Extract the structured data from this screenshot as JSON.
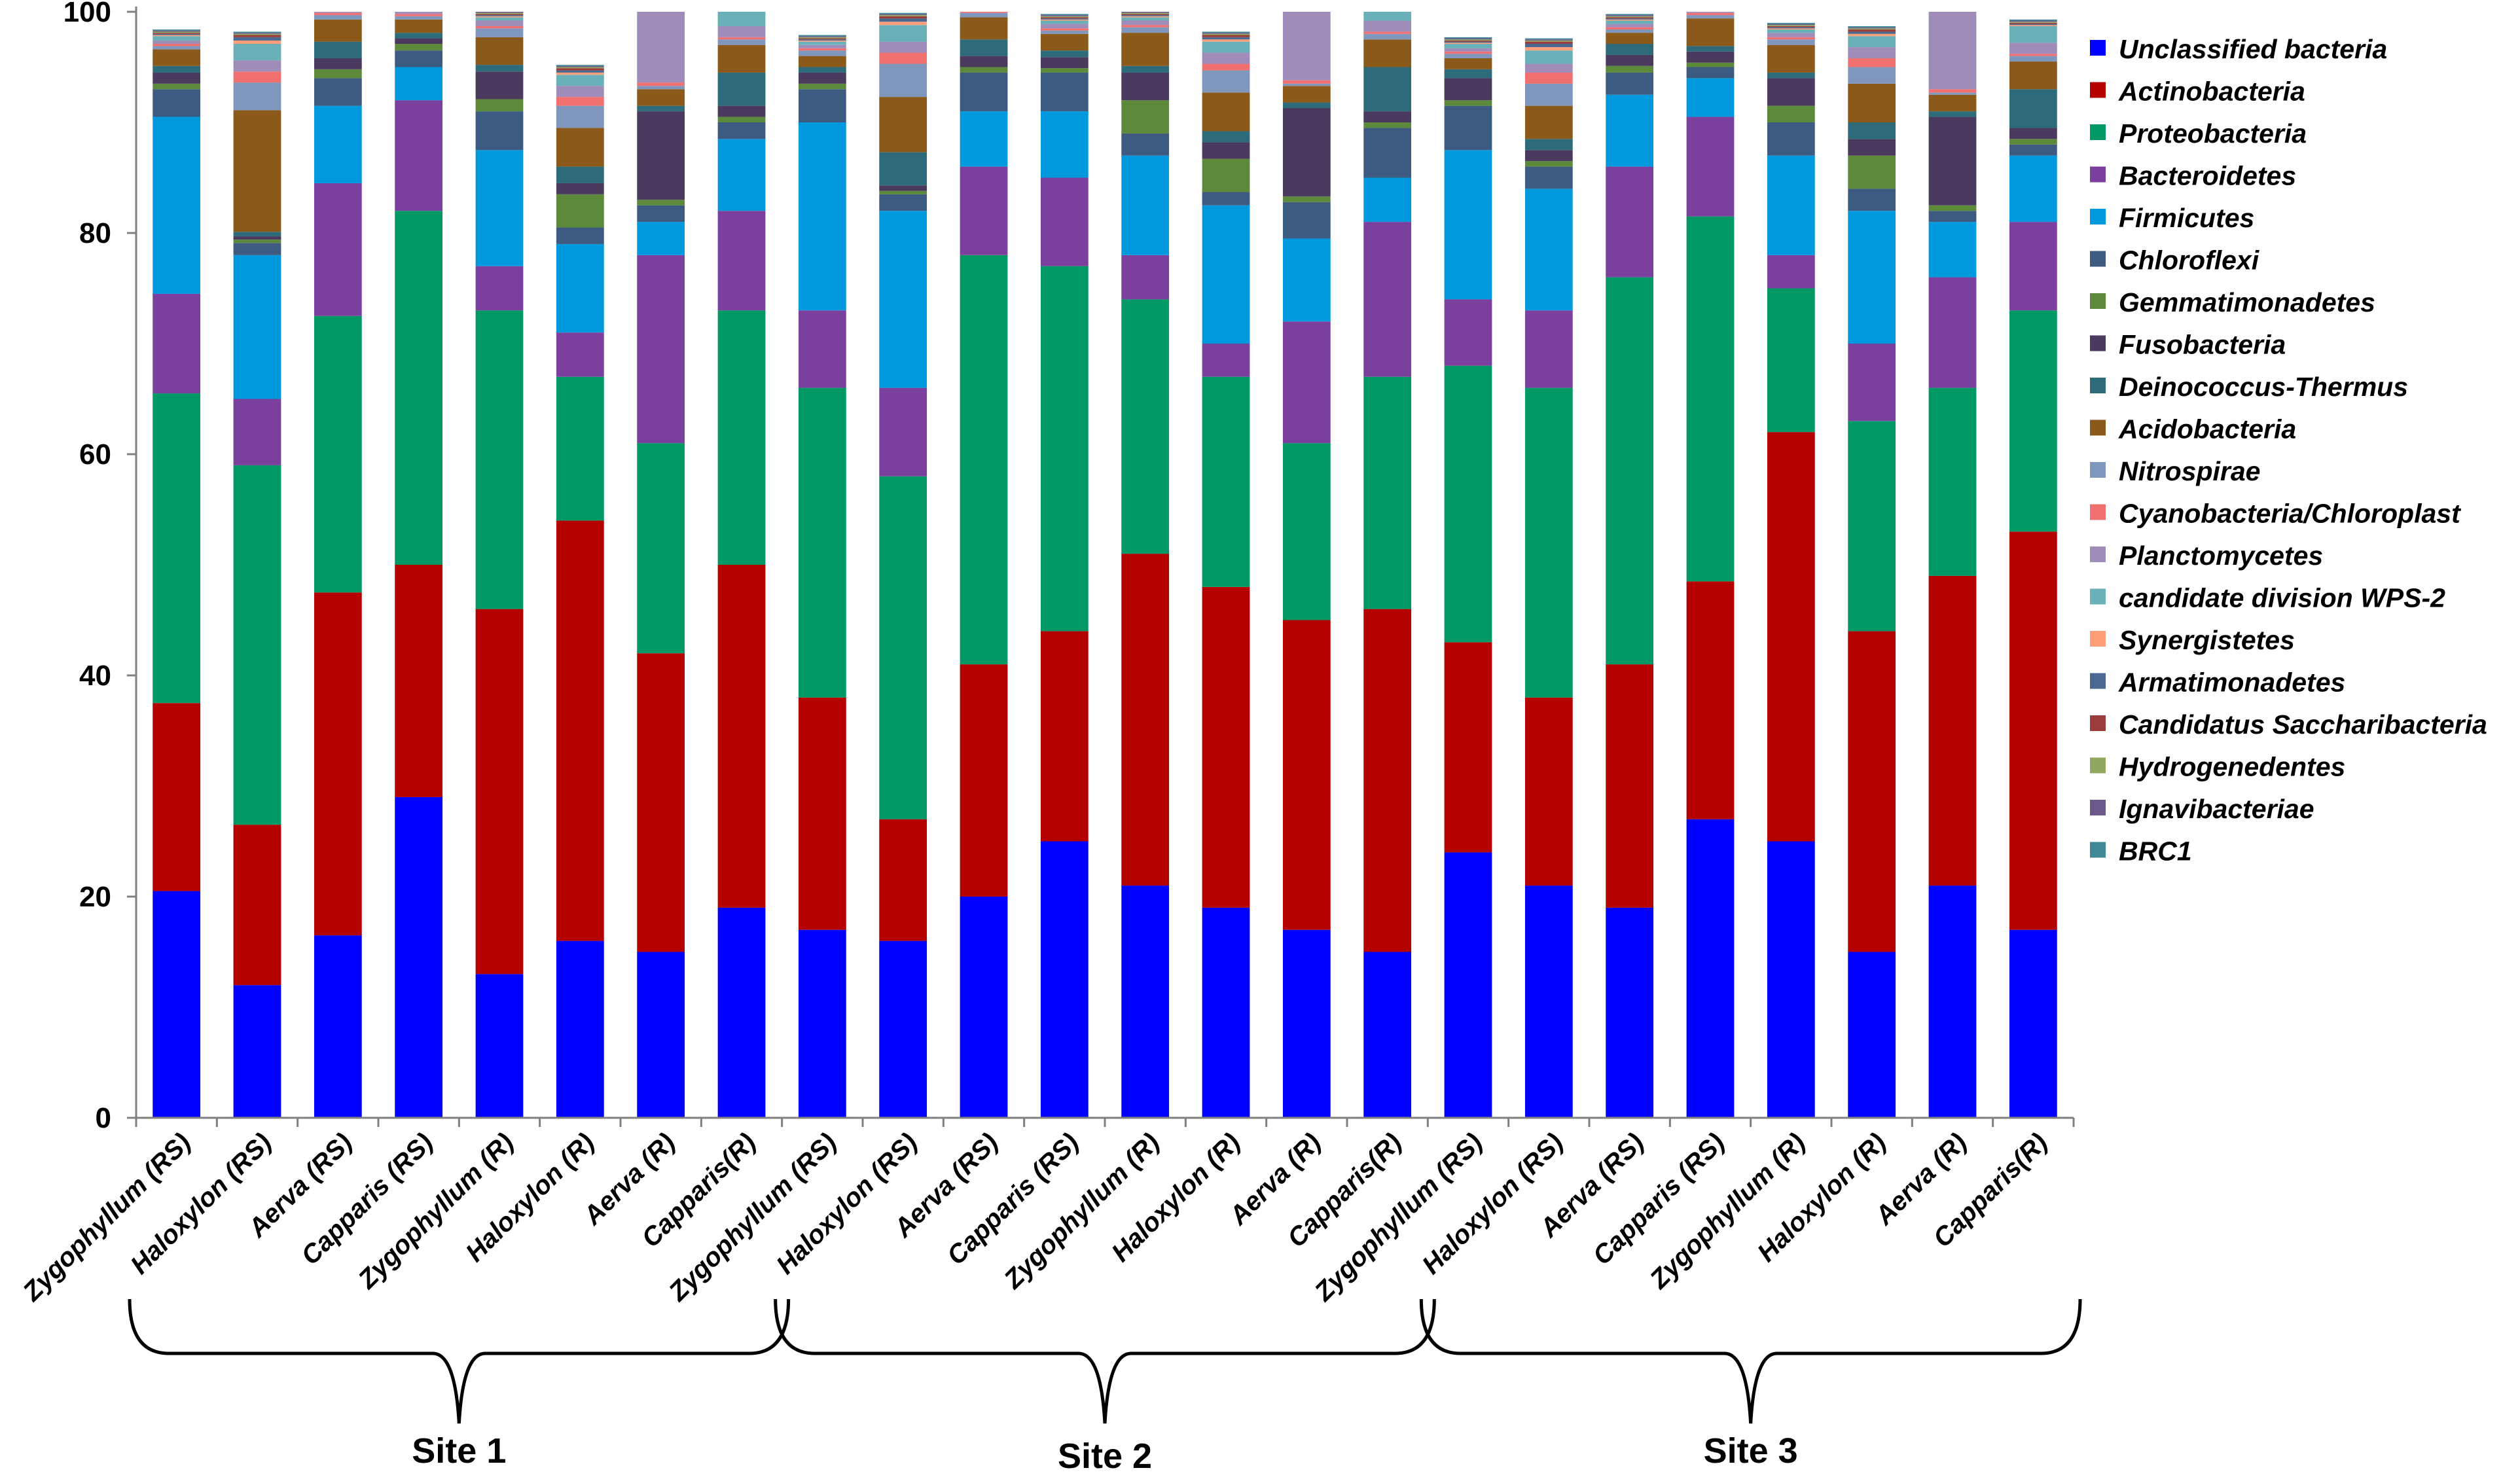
{
  "chart_data": {
    "type": "bar",
    "stacked": true,
    "title": "",
    "xlabel": "",
    "ylabel": "",
    "ylim": [
      0,
      100
    ],
    "yticks": [
      0,
      20,
      40,
      60,
      80,
      100
    ],
    "legend_position": "right",
    "categories": [
      "Zygophyllum (RS)",
      "Haloxylon (RS)",
      "Aerva (RS)",
      "Capparis (RS)",
      "Zygophyllum (R)",
      "Haloxylon (R)",
      "Aerva (R)",
      "Capparis(R)",
      "Zygophyllum (RS)",
      "Haloxylon (RS)",
      "Aerva (RS)",
      "Capparis (RS)",
      "Zygophyllum (R)",
      "Haloxylon (R)",
      "Aerva (R)",
      "Capparis(R)",
      "Zygophyllum (RS)",
      "Haloxylon (RS)",
      "Aerva (RS)",
      "Capparis (RS)",
      "Zygophyllum (R)",
      "Haloxylon (R)",
      "Aerva (R)",
      "Capparis(R)"
    ],
    "groups": [
      {
        "label": "Site 1",
        "start": 0,
        "end": 7
      },
      {
        "label": "Site 2",
        "start": 8,
        "end": 15
      },
      {
        "label": "Site 3",
        "start": 16,
        "end": 23
      }
    ],
    "series": [
      {
        "name": "Unclassified bacteria",
        "color": "#0000ff",
        "values": [
          20.5,
          12,
          16.5,
          29,
          13,
          16,
          15,
          19,
          17,
          16,
          20,
          25,
          21,
          19,
          17,
          15,
          24,
          21,
          19,
          27,
          25,
          15,
          21,
          17
        ]
      },
      {
        "name": "Actinobacteria",
        "color": "#b50000",
        "values": [
          17,
          14.5,
          31,
          21,
          33,
          38,
          27,
          31,
          21,
          11,
          21,
          19,
          30,
          29,
          28,
          31,
          19,
          17,
          22,
          21.5,
          37,
          29,
          28,
          36
        ]
      },
      {
        "name": "Proteobacteria",
        "color": "#009966",
        "values": [
          28,
          32.5,
          25,
          32,
          27,
          13,
          19,
          23,
          28,
          31,
          37,
          33,
          23,
          19,
          16,
          21,
          25,
          28,
          35,
          33,
          13,
          19,
          17,
          20
        ]
      },
      {
        "name": "Bacteroidetes",
        "color": "#7b3f9e",
        "values": [
          9,
          6,
          12,
          10,
          4,
          4,
          17,
          9,
          7,
          8,
          8,
          8,
          4,
          3,
          11,
          14,
          6,
          7,
          10,
          9,
          3,
          7,
          10,
          8
        ]
      },
      {
        "name": "Firmicutes",
        "color": "#0099dd",
        "values": [
          16,
          13,
          7,
          3,
          10.5,
          8,
          3,
          6.5,
          17,
          16,
          5,
          6,
          9,
          12.5,
          7.5,
          4,
          13.5,
          11,
          6.5,
          3.5,
          9,
          12,
          5,
          6
        ]
      },
      {
        "name": "Chloroflexi",
        "color": "#3d5a80",
        "values": [
          2.5,
          1.1,
          2.5,
          1.5,
          3.5,
          1.5,
          1.5,
          1.5,
          3,
          1.5,
          3.5,
          3.5,
          2,
          1.2,
          3.3,
          4.5,
          4,
          2,
          2,
          1,
          3,
          2,
          1,
          1
        ]
      },
      {
        "name": "Gemmatimonadetes",
        "color": "#5c8a3a",
        "values": [
          0.5,
          0.3,
          0.8,
          0.6,
          1.1,
          3,
          0.5,
          0.5,
          0.5,
          0.3,
          0.5,
          0.4,
          3,
          3,
          0.5,
          0.5,
          0.5,
          0.5,
          0.6,
          0.4,
          1.5,
          3,
          0.5,
          0.5
        ]
      },
      {
        "name": "Fusobacteria",
        "color": "#4a3a5e",
        "values": [
          1,
          0.3,
          1,
          0.5,
          2.5,
          1,
          8,
          1,
          1,
          0.5,
          1,
          1,
          2.5,
          1.5,
          8,
          1,
          2,
          1,
          1,
          1,
          2.5,
          1.5,
          8,
          1
        ]
      },
      {
        "name": "Deinococcus-Thermus",
        "color": "#2e6b7a",
        "values": [
          0.6,
          0.4,
          1.5,
          0.5,
          0.6,
          1.5,
          0.5,
          3,
          0.5,
          3,
          1.5,
          0.6,
          0.6,
          1,
          0.5,
          4,
          0.8,
          1,
          1,
          0.5,
          0.5,
          1.5,
          0.5,
          3.5
        ]
      },
      {
        "name": "Acidobacteria",
        "color": "#8b5a1a",
        "values": [
          1.5,
          11,
          2,
          1.2,
          2.5,
          3.5,
          1.5,
          2.5,
          1,
          5,
          2,
          1.5,
          3,
          3.5,
          1.5,
          2.5,
          1,
          3,
          1,
          2.5,
          2.5,
          3.5,
          1.5,
          2.5
        ]
      },
      {
        "name": "Nitrospirae",
        "color": "#7f96bd",
        "values": [
          0.3,
          2.5,
          0.4,
          0.3,
          0.8,
          2,
          0.3,
          0.5,
          0.5,
          3,
          0.4,
          0.3,
          0.5,
          2,
          0.2,
          0.5,
          0.4,
          2,
          0.3,
          0.3,
          0.5,
          1.5,
          0.2,
          0.5
        ]
      },
      {
        "name": "Cyanobacteria/Chloroplast",
        "color": "#f07070",
        "values": [
          0.2,
          1,
          0.2,
          0.2,
          0.2,
          0.8,
          0.3,
          0.2,
          0.2,
          1,
          0.2,
          0.2,
          0.2,
          0.6,
          0.3,
          0.2,
          0.2,
          1,
          0.2,
          0.2,
          0.2,
          0.8,
          0.3,
          0.2
        ]
      },
      {
        "name": "Planctomycetes",
        "color": "#a08cb8",
        "values": [
          0.3,
          1,
          0.3,
          0.4,
          0.5,
          1,
          6.5,
          1,
          0.3,
          1,
          0.3,
          0.4,
          0.4,
          1,
          6.5,
          1,
          0.3,
          0.8,
          0.3,
          0.4,
          0.4,
          1,
          7,
          1
        ]
      },
      {
        "name": "candidate division WPS-2",
        "color": "#6ab0b8",
        "values": [
          0.4,
          1.5,
          0.3,
          0.3,
          0.3,
          1,
          0.2,
          1.5,
          0.3,
          1.5,
          0.3,
          0.3,
          0.3,
          1,
          0.2,
          1.5,
          0.4,
          1.2,
          0.3,
          0.3,
          0.3,
          1,
          0.2,
          1.5
        ]
      },
      {
        "name": "Synergistetes",
        "color": "#ff9f7a",
        "values": [
          0.1,
          0.3,
          0.1,
          0.1,
          0.1,
          0.2,
          0.1,
          0.1,
          0.1,
          0.3,
          0.1,
          0.1,
          0.1,
          0.2,
          0.1,
          0.1,
          0.1,
          0.3,
          0.1,
          0.1,
          0.1,
          0.2,
          0.1,
          0.1
        ]
      },
      {
        "name": "Armatimonadetes",
        "color": "#4a6890",
        "values": [
          0.1,
          0.3,
          0.1,
          0.1,
          0.1,
          0.2,
          0.1,
          0.1,
          0.1,
          0.3,
          0.1,
          0.1,
          0.1,
          0.2,
          0.1,
          0.1,
          0.1,
          0.3,
          0.1,
          0.1,
          0.1,
          0.2,
          0.1,
          0.1
        ]
      },
      {
        "name": "Candidatus Saccharibacteria",
        "color": "#9b3c3c",
        "values": [
          0.1,
          0.2,
          0.1,
          0.1,
          0.1,
          0.2,
          0.1,
          0.1,
          0.1,
          0.2,
          0.1,
          0.1,
          0.1,
          0.2,
          0.1,
          0.1,
          0.1,
          0.2,
          0.1,
          0.1,
          0.1,
          0.2,
          0.1,
          0.1
        ]
      },
      {
        "name": "Hydrogenedentes",
        "color": "#90a860",
        "values": [
          0.1,
          0.1,
          0.1,
          0.1,
          0.1,
          0.1,
          0.1,
          0.1,
          0.1,
          0.1,
          0.1,
          0.1,
          0.1,
          0.1,
          0.1,
          0.1,
          0.1,
          0.1,
          0.1,
          0.1,
          0.1,
          0.1,
          0.1,
          0.1
        ]
      },
      {
        "name": "Ignavibacteriae",
        "color": "#6a5a8a",
        "values": [
          0.1,
          0.1,
          0.1,
          0.1,
          0.1,
          0.1,
          0.1,
          0.1,
          0.1,
          0.1,
          0.1,
          0.1,
          0.1,
          0.1,
          0.1,
          0.1,
          0.1,
          0.1,
          0.1,
          0.1,
          0.1,
          0.1,
          0.1,
          0.1
        ]
      },
      {
        "name": "BRC1",
        "color": "#3f8a96",
        "values": [
          0.1,
          0.1,
          0.1,
          0.1,
          0.1,
          0.1,
          0.1,
          0.1,
          0.1,
          0.1,
          0.1,
          0.1,
          0.1,
          0.1,
          0.1,
          0.1,
          0.1,
          0.1,
          0.1,
          0.1,
          0.1,
          0.1,
          0.1,
          0.1
        ]
      }
    ]
  }
}
